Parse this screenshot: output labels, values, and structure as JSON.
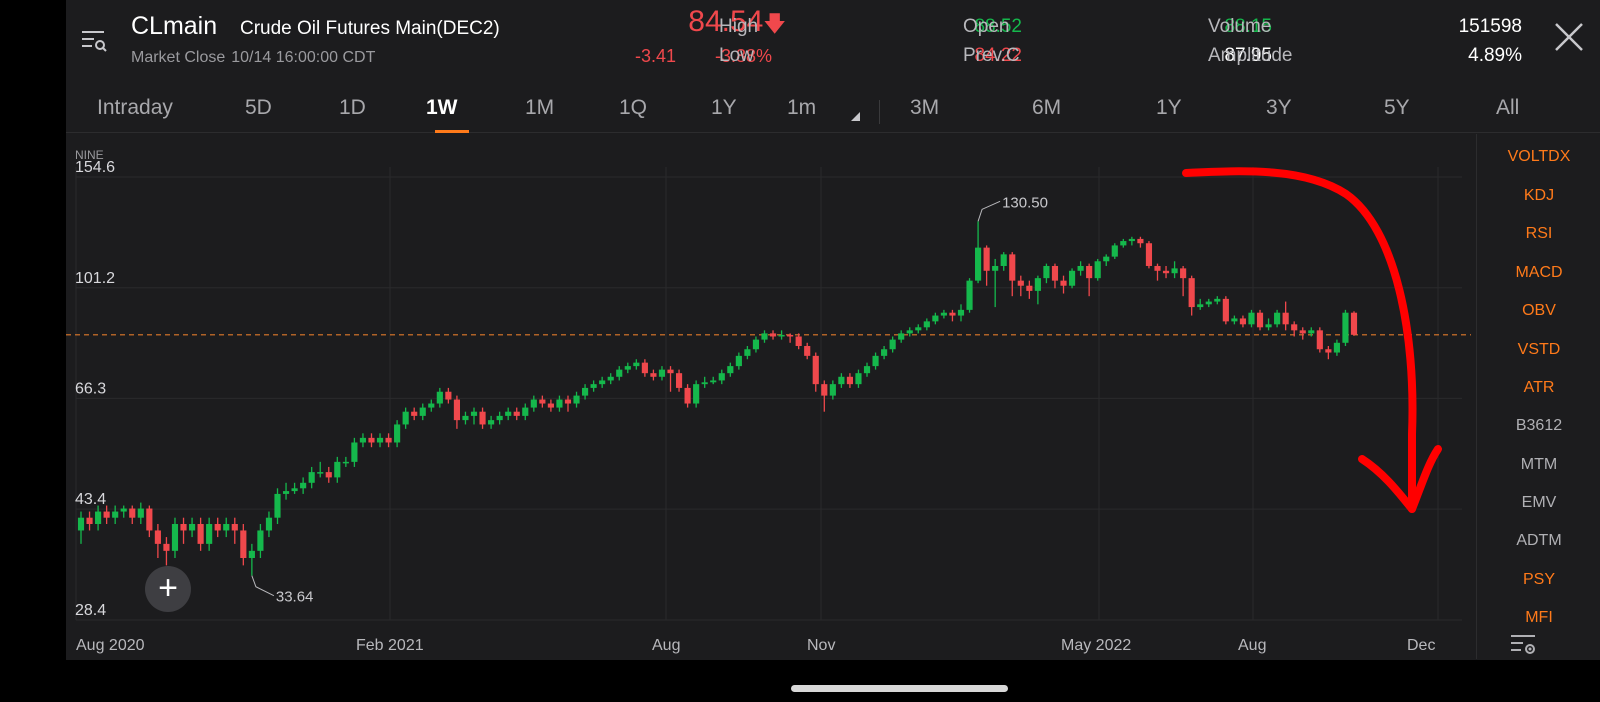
{
  "header": {
    "symbol": "CLmain",
    "name": "Crude Oil Futures Main(DEC2)",
    "status": "Market Close",
    "timestamp": "10/14 16:00:00 CDT",
    "price": "84.54",
    "change": "-3.41",
    "change_pct": "-3.88%",
    "stats": {
      "high_label": "High",
      "high": "88.52",
      "low_label": "Low",
      "low": "84.22",
      "open_label": "Open",
      "open": "88.15",
      "prevc_label": "Prev.C",
      "prevc": "87.95",
      "volume_label": "Volume",
      "volume": "151598",
      "amplitude_label": "Amplitude",
      "amplitude": "4.89%"
    }
  },
  "tabs": [
    {
      "label": "Intraday"
    },
    {
      "label": "5D"
    },
    {
      "label": "1D"
    },
    {
      "label": "1W"
    },
    {
      "label": "1M"
    },
    {
      "label": "1Q"
    },
    {
      "label": "1Y"
    },
    {
      "label": "1m"
    },
    {
      "label": "3M"
    },
    {
      "label": "6M"
    },
    {
      "label": "1Y"
    },
    {
      "label": "3Y"
    },
    {
      "label": "5Y"
    },
    {
      "label": "All"
    }
  ],
  "active_tab": "1W",
  "chart": {
    "indicator_name": "NINE",
    "y_ticks": [
      "154.6",
      "101.2",
      "66.3",
      "43.4",
      "28.4"
    ],
    "x_ticks": [
      "Aug 2020",
      "Feb 2021",
      "Aug",
      "Nov",
      "May 2022",
      "Aug",
      "Dec"
    ],
    "high_annotation": "130.50",
    "low_annotation": "33.64",
    "reference_line_value": 84.54
  },
  "chart_data": {
    "type": "candlestick",
    "scale": "log",
    "ylim": [
      28.4,
      154.6
    ],
    "y_ticks": [
      28.4,
      43.4,
      66.3,
      101.2,
      154.6
    ],
    "reference_line": 84.54,
    "annotations": [
      {
        "label": "130.50",
        "value": 130.5
      },
      {
        "label": "33.64",
        "value": 33.64
      }
    ],
    "candles": [
      {
        "o": 40,
        "c": 42,
        "h": 43,
        "l": 38
      },
      {
        "o": 42,
        "c": 41,
        "h": 43,
        "l": 40
      },
      {
        "o": 41,
        "c": 43,
        "h": 44,
        "l": 40
      },
      {
        "o": 43,
        "c": 42,
        "h": 44,
        "l": 41
      },
      {
        "o": 42,
        "c": 43,
        "h": 44,
        "l": 41
      },
      {
        "o": 43,
        "c": 43.5,
        "h": 44,
        "l": 42
      },
      {
        "o": 43.5,
        "c": 42,
        "h": 44,
        "l": 41
      },
      {
        "o": 42,
        "c": 43.5,
        "h": 44.5,
        "l": 41
      },
      {
        "o": 43.5,
        "c": 40,
        "h": 44,
        "l": 39
      },
      {
        "o": 40,
        "c": 38,
        "h": 41,
        "l": 36
      },
      {
        "o": 38,
        "c": 37,
        "h": 39,
        "l": 35
      },
      {
        "o": 37,
        "c": 41,
        "h": 42,
        "l": 36
      },
      {
        "o": 41,
        "c": 40,
        "h": 42,
        "l": 38
      },
      {
        "o": 40,
        "c": 41,
        "h": 42,
        "l": 39
      },
      {
        "o": 41,
        "c": 38,
        "h": 42,
        "l": 37
      },
      {
        "o": 38,
        "c": 41,
        "h": 42,
        "l": 37
      },
      {
        "o": 41,
        "c": 40,
        "h": 42,
        "l": 39
      },
      {
        "o": 40,
        "c": 41,
        "h": 42,
        "l": 39
      },
      {
        "o": 41,
        "c": 40,
        "h": 42,
        "l": 38
      },
      {
        "o": 40,
        "c": 36,
        "h": 41,
        "l": 35
      },
      {
        "o": 36,
        "c": 37,
        "h": 38,
        "l": 33.64
      },
      {
        "o": 37,
        "c": 40,
        "h": 41,
        "l": 36
      },
      {
        "o": 40,
        "c": 42,
        "h": 43,
        "l": 39
      },
      {
        "o": 42,
        "c": 46,
        "h": 47,
        "l": 41
      },
      {
        "o": 46,
        "c": 46.5,
        "h": 48,
        "l": 45
      },
      {
        "o": 46.5,
        "c": 47,
        "h": 48,
        "l": 46
      },
      {
        "o": 47,
        "c": 48,
        "h": 49,
        "l": 46
      },
      {
        "o": 48,
        "c": 50,
        "h": 51,
        "l": 47
      },
      {
        "o": 50,
        "c": 50,
        "h": 52,
        "l": 49
      },
      {
        "o": 50,
        "c": 49,
        "h": 51,
        "l": 48
      },
      {
        "o": 49,
        "c": 52,
        "h": 53,
        "l": 48
      },
      {
        "o": 52,
        "c": 52,
        "h": 53,
        "l": 51
      },
      {
        "o": 52,
        "c": 56,
        "h": 57,
        "l": 51
      },
      {
        "o": 56,
        "c": 57,
        "h": 58,
        "l": 55
      },
      {
        "o": 57,
        "c": 56,
        "h": 58,
        "l": 55
      },
      {
        "o": 56,
        "c": 57,
        "h": 58,
        "l": 55
      },
      {
        "o": 57,
        "c": 56,
        "h": 58,
        "l": 55
      },
      {
        "o": 56,
        "c": 60,
        "h": 61,
        "l": 55
      },
      {
        "o": 60,
        "c": 63,
        "h": 64,
        "l": 59
      },
      {
        "o": 63,
        "c": 62,
        "h": 64,
        "l": 61
      },
      {
        "o": 62,
        "c": 64,
        "h": 65,
        "l": 61
      },
      {
        "o": 64,
        "c": 65,
        "h": 66,
        "l": 63
      },
      {
        "o": 65,
        "c": 68,
        "h": 69,
        "l": 64
      },
      {
        "o": 68,
        "c": 66,
        "h": 69,
        "l": 65
      },
      {
        "o": 66,
        "c": 61,
        "h": 67,
        "l": 59
      },
      {
        "o": 61,
        "c": 62,
        "h": 63,
        "l": 60
      },
      {
        "o": 62,
        "c": 63,
        "h": 64,
        "l": 60
      },
      {
        "o": 63,
        "c": 60,
        "h": 64,
        "l": 59
      },
      {
        "o": 60,
        "c": 61,
        "h": 62,
        "l": 59
      },
      {
        "o": 61,
        "c": 62,
        "h": 63,
        "l": 60
      },
      {
        "o": 62,
        "c": 63,
        "h": 64,
        "l": 61
      },
      {
        "o": 63,
        "c": 62,
        "h": 64,
        "l": 61
      },
      {
        "o": 62,
        "c": 64,
        "h": 65,
        "l": 61
      },
      {
        "o": 64,
        "c": 66,
        "h": 67,
        "l": 63
      },
      {
        "o": 66,
        "c": 65,
        "h": 67,
        "l": 64
      },
      {
        "o": 65,
        "c": 64,
        "h": 66,
        "l": 63
      },
      {
        "o": 64,
        "c": 66,
        "h": 67,
        "l": 63
      },
      {
        "o": 66,
        "c": 65,
        "h": 67,
        "l": 63
      },
      {
        "o": 65,
        "c": 67,
        "h": 68,
        "l": 64
      },
      {
        "o": 67,
        "c": 69,
        "h": 70,
        "l": 66
      },
      {
        "o": 69,
        "c": 70,
        "h": 71,
        "l": 68
      },
      {
        "o": 70,
        "c": 71,
        "h": 72,
        "l": 69
      },
      {
        "o": 71,
        "c": 72,
        "h": 73,
        "l": 70
      },
      {
        "o": 72,
        "c": 74,
        "h": 75,
        "l": 71
      },
      {
        "o": 74,
        "c": 75,
        "h": 76,
        "l": 73
      },
      {
        "o": 75,
        "c": 76,
        "h": 77,
        "l": 74
      },
      {
        "o": 76,
        "c": 73,
        "h": 77,
        "l": 72
      },
      {
        "o": 73,
        "c": 72,
        "h": 74,
        "l": 71
      },
      {
        "o": 72,
        "c": 74,
        "h": 75,
        "l": 71
      },
      {
        "o": 74,
        "c": 73,
        "h": 75,
        "l": 68
      },
      {
        "o": 73,
        "c": 69,
        "h": 74,
        "l": 68
      },
      {
        "o": 69,
        "c": 65,
        "h": 70,
        "l": 64
      },
      {
        "o": 65,
        "c": 70,
        "h": 71,
        "l": 64
      },
      {
        "o": 70,
        "c": 70.5,
        "h": 72,
        "l": 69
      },
      {
        "o": 70.5,
        "c": 71,
        "h": 72,
        "l": 70
      },
      {
        "o": 71,
        "c": 73,
        "h": 74,
        "l": 70
      },
      {
        "o": 73,
        "c": 75,
        "h": 76,
        "l": 72
      },
      {
        "o": 75,
        "c": 78,
        "h": 79,
        "l": 74
      },
      {
        "o": 78,
        "c": 80,
        "h": 81,
        "l": 77
      },
      {
        "o": 80,
        "c": 83,
        "h": 84,
        "l": 79
      },
      {
        "o": 83,
        "c": 85,
        "h": 86,
        "l": 82
      },
      {
        "o": 85,
        "c": 84,
        "h": 86,
        "l": 83
      },
      {
        "o": 84,
        "c": 84.5,
        "h": 86,
        "l": 83
      },
      {
        "o": 84.5,
        "c": 84,
        "h": 85,
        "l": 82
      },
      {
        "o": 84,
        "c": 81,
        "h": 85,
        "l": 80
      },
      {
        "o": 81,
        "c": 78,
        "h": 82,
        "l": 77
      },
      {
        "o": 78,
        "c": 70,
        "h": 79,
        "l": 68
      },
      {
        "o": 70,
        "c": 67,
        "h": 71,
        "l": 63
      },
      {
        "o": 67,
        "c": 70,
        "h": 71,
        "l": 66
      },
      {
        "o": 70,
        "c": 72,
        "h": 73,
        "l": 69
      },
      {
        "o": 72,
        "c": 70,
        "h": 73,
        "l": 69
      },
      {
        "o": 70,
        "c": 73,
        "h": 74,
        "l": 69
      },
      {
        "o": 73,
        "c": 75,
        "h": 76,
        "l": 72
      },
      {
        "o": 75,
        "c": 78,
        "h": 79,
        "l": 74
      },
      {
        "o": 78,
        "c": 80,
        "h": 81,
        "l": 77
      },
      {
        "o": 80,
        "c": 83,
        "h": 84,
        "l": 79
      },
      {
        "o": 83,
        "c": 85,
        "h": 86,
        "l": 82
      },
      {
        "o": 85,
        "c": 86,
        "h": 87,
        "l": 84
      },
      {
        "o": 86,
        "c": 87,
        "h": 88,
        "l": 85
      },
      {
        "o": 87,
        "c": 89,
        "h": 90,
        "l": 86
      },
      {
        "o": 89,
        "c": 91,
        "h": 92,
        "l": 88
      },
      {
        "o": 91,
        "c": 92,
        "h": 93,
        "l": 90
      },
      {
        "o": 92,
        "c": 91,
        "h": 93,
        "l": 89
      },
      {
        "o": 91,
        "c": 93,
        "h": 95,
        "l": 89
      },
      {
        "o": 93,
        "c": 104,
        "h": 105,
        "l": 92
      },
      {
        "o": 104,
        "c": 118,
        "h": 130.5,
        "l": 103
      },
      {
        "o": 118,
        "c": 108,
        "h": 119,
        "l": 102
      },
      {
        "o": 108,
        "c": 110,
        "h": 113,
        "l": 94
      },
      {
        "o": 110,
        "c": 115,
        "h": 116,
        "l": 108
      },
      {
        "o": 115,
        "c": 104,
        "h": 116,
        "l": 98
      },
      {
        "o": 104,
        "c": 102,
        "h": 106,
        "l": 98
      },
      {
        "o": 102,
        "c": 100,
        "h": 104,
        "l": 97
      },
      {
        "o": 100,
        "c": 105,
        "h": 106,
        "l": 95
      },
      {
        "o": 105,
        "c": 110,
        "h": 111,
        "l": 103
      },
      {
        "o": 110,
        "c": 104,
        "h": 111,
        "l": 101
      },
      {
        "o": 104,
        "c": 102,
        "h": 106,
        "l": 99
      },
      {
        "o": 102,
        "c": 108,
        "h": 109,
        "l": 101
      },
      {
        "o": 108,
        "c": 110,
        "h": 112,
        "l": 106
      },
      {
        "o": 110,
        "c": 105,
        "h": 111,
        "l": 98
      },
      {
        "o": 105,
        "c": 112,
        "h": 113,
        "l": 104
      },
      {
        "o": 112,
        "c": 114,
        "h": 115,
        "l": 110
      },
      {
        "o": 114,
        "c": 119,
        "h": 120,
        "l": 113
      },
      {
        "o": 119,
        "c": 121,
        "h": 122,
        "l": 118
      },
      {
        "o": 121,
        "c": 122,
        "h": 123,
        "l": 119
      },
      {
        "o": 122,
        "c": 120,
        "h": 123,
        "l": 118
      },
      {
        "o": 120,
        "c": 110,
        "h": 121,
        "l": 109
      },
      {
        "o": 110,
        "c": 108,
        "h": 111,
        "l": 104
      },
      {
        "o": 108,
        "c": 107,
        "h": 110,
        "l": 105
      },
      {
        "o": 107,
        "c": 109,
        "h": 112,
        "l": 105
      },
      {
        "o": 109,
        "c": 105,
        "h": 110,
        "l": 98
      },
      {
        "o": 105,
        "c": 94,
        "h": 106,
        "l": 91
      },
      {
        "o": 94,
        "c": 95,
        "h": 97,
        "l": 93
      },
      {
        "o": 95,
        "c": 96,
        "h": 97,
        "l": 94
      },
      {
        "o": 96,
        "c": 97,
        "h": 98,
        "l": 95
      },
      {
        "o": 97,
        "c": 89,
        "h": 98,
        "l": 88
      },
      {
        "o": 89,
        "c": 90,
        "h": 91,
        "l": 88
      },
      {
        "o": 90,
        "c": 88,
        "h": 91,
        "l": 87
      },
      {
        "o": 88,
        "c": 92,
        "h": 93,
        "l": 87
      },
      {
        "o": 92,
        "c": 87,
        "h": 93,
        "l": 86
      },
      {
        "o": 87,
        "c": 88,
        "h": 90,
        "l": 86
      },
      {
        "o": 88,
        "c": 92,
        "h": 93,
        "l": 87
      },
      {
        "o": 92,
        "c": 88,
        "h": 96,
        "l": 86
      },
      {
        "o": 88,
        "c": 86,
        "h": 89,
        "l": 84
      },
      {
        "o": 86,
        "c": 85,
        "h": 87,
        "l": 83
      },
      {
        "o": 85,
        "c": 86,
        "h": 87,
        "l": 84
      },
      {
        "o": 86,
        "c": 80,
        "h": 87,
        "l": 79
      },
      {
        "o": 80,
        "c": 79,
        "h": 81,
        "l": 77
      },
      {
        "o": 79,
        "c": 82,
        "h": 83,
        "l": 78
      },
      {
        "o": 82,
        "c": 92,
        "h": 93,
        "l": 81
      },
      {
        "o": 92,
        "c": 84.54,
        "h": 92.5,
        "l": 84.22
      }
    ]
  },
  "indicators": [
    {
      "label": "VOLTDX",
      "color": "#ff7a1a"
    },
    {
      "label": "KDJ",
      "color": "#ff7a1a"
    },
    {
      "label": "RSI",
      "color": "#ff7a1a"
    },
    {
      "label": "MACD",
      "color": "#ff7a1a"
    },
    {
      "label": "OBV",
      "color": "#ff7a1a"
    },
    {
      "label": "VSTD",
      "color": "#ff7a1a"
    },
    {
      "label": "ATR",
      "color": "#ff7a1a"
    },
    {
      "label": "B3612",
      "color": "#b0b0b4"
    },
    {
      "label": "MTM",
      "color": "#b0b0b4"
    },
    {
      "label": "EMV",
      "color": "#b0b0b4"
    },
    {
      "label": "ADTM",
      "color": "#b0b0b4"
    },
    {
      "label": "PSY",
      "color": "#ff7a1a"
    },
    {
      "label": "MFI",
      "color": "#ff7a1a"
    }
  ],
  "colors": {
    "up": "#15b84c",
    "down": "#f0484c",
    "accent": "#ff7a1a",
    "annotation_arrow": "#ff0000"
  }
}
